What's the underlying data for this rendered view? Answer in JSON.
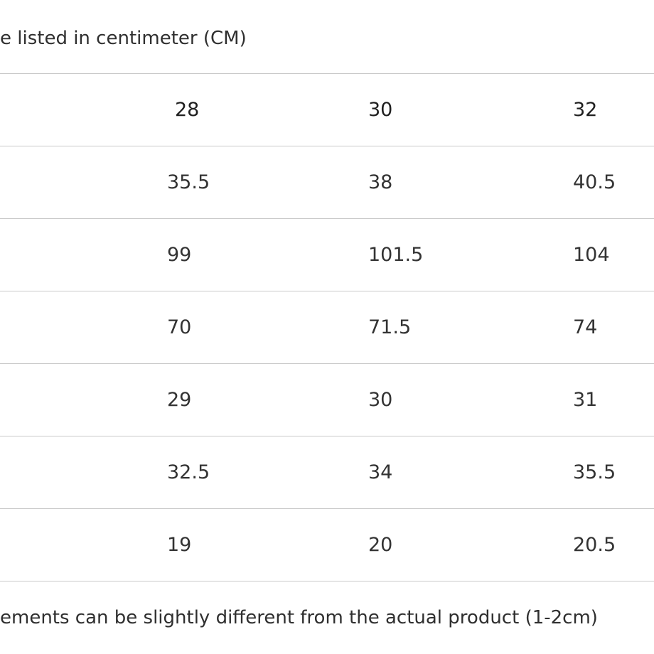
{
  "header_note": "e listed in centimeter (CM)",
  "table": {
    "columns": [
      "",
      "28",
      "30",
      "32"
    ],
    "rows": [
      [
        "",
        "35.5",
        "38",
        "40.5"
      ],
      [
        "",
        "99",
        "101.5",
        "104"
      ],
      [
        "",
        "70",
        "71.5",
        "74"
      ],
      [
        "",
        "29",
        "30",
        "31"
      ],
      [
        "",
        "32.5",
        "34",
        "35.5"
      ],
      [
        "",
        "19",
        "20",
        "20.5"
      ]
    ]
  },
  "footer_note": "ements can be slightly different from the actual product (1-2cm)"
}
